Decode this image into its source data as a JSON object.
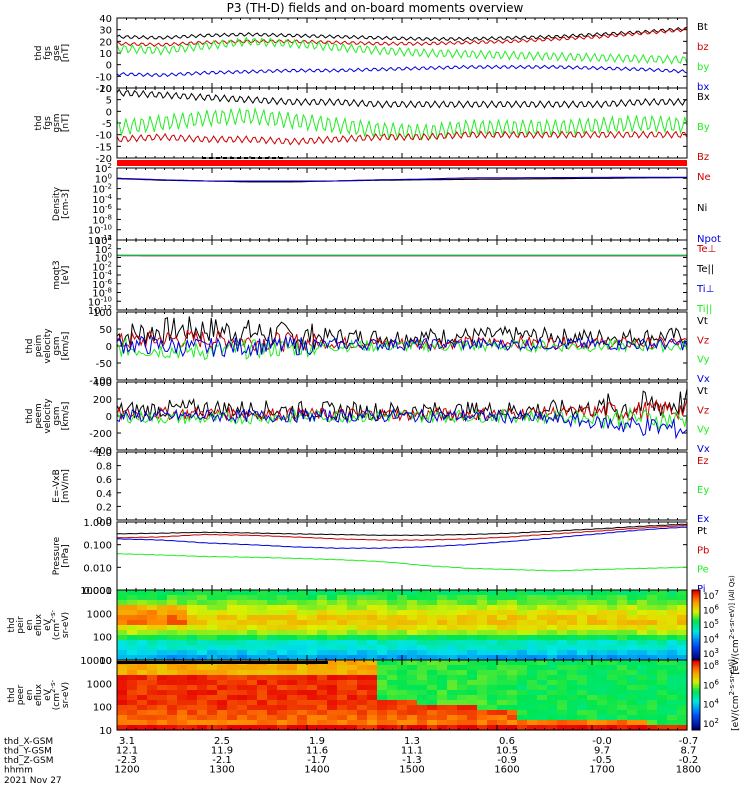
{
  "title": "P3 (TH-D) fields and on-board moments overview",
  "colors": {
    "black": "#000000",
    "red": "#cc0000",
    "green": "#22ee22",
    "blue": "#0000dd"
  },
  "chart_data": [
    {
      "type": "line",
      "ylabel": [
        "thd",
        "fgs",
        "gse",
        "[nT]"
      ],
      "ylim": [
        -20,
        40
      ],
      "yticks": [
        "40",
        "30",
        "20",
        "10",
        "0",
        "-10",
        "-20"
      ],
      "series": [
        {
          "name": "Bt",
          "color": "black",
          "values": [
            24,
            23,
            25,
            26,
            25,
            24,
            23,
            22,
            22,
            23,
            24,
            26,
            28,
            31
          ]
        },
        {
          "name": "bz",
          "color": "red",
          "values": [
            18,
            17,
            19,
            20,
            20,
            19,
            18,
            18,
            19,
            20,
            22,
            24,
            27,
            30
          ]
        },
        {
          "name": "by",
          "color": "green",
          "values": [
            14,
            12,
            16,
            20,
            18,
            15,
            12,
            10,
            9,
            8,
            7,
            6,
            5,
            4
          ]
        },
        {
          "name": "bx",
          "color": "blue",
          "values": [
            -8,
            -9,
            -7,
            -6,
            -5,
            -5,
            -4,
            -3,
            -2,
            -2,
            -2,
            -3,
            -4,
            -6
          ]
        }
      ]
    },
    {
      "type": "line",
      "ylabel": [
        "thd",
        "fgs",
        "gsm",
        "[nT]"
      ],
      "ylim": [
        -20,
        10
      ],
      "yticks": [
        "10",
        "5",
        "0",
        "-5",
        "-10",
        "-15",
        "-20"
      ],
      "series": [
        {
          "name": "Bx",
          "color": "black",
          "values": [
            8,
            7,
            6,
            5,
            4,
            4,
            3,
            3,
            3,
            3,
            3,
            3,
            4,
            4
          ]
        },
        {
          "name": "By",
          "color": "green",
          "values": [
            -7,
            -5,
            -3,
            -2,
            -4,
            -6,
            -8,
            -9,
            -7,
            -7,
            -7,
            -6,
            -5,
            -6
          ]
        },
        {
          "name": "Bz",
          "color": "red",
          "values": [
            -12,
            -11,
            -12,
            -12,
            -13,
            -12,
            -11,
            -11,
            -10,
            -10,
            -10,
            -10,
            -10,
            -10
          ]
        }
      ]
    },
    {
      "type": "line",
      "ylabel": [
        "Density",
        "[cm-3]"
      ],
      "log": true,
      "ylim": [
        -12,
        2
      ],
      "yticks": [
        "10^2",
        "10^0",
        "10^-2",
        "10^-4",
        "10^-6",
        "10^-8",
        "10^-10",
        "10^-12"
      ],
      "series": [
        {
          "name": "Ne",
          "color": "red",
          "values": [
            1,
            0.5,
            0.3,
            0.2,
            0.2,
            0.3,
            0.5,
            0.6,
            0.7,
            0.8,
            0.9,
            1,
            1.2,
            1.4
          ]
        },
        {
          "name": "Ni",
          "color": "black",
          "values": [
            0.8,
            0.4,
            0.3,
            0.2,
            0.2,
            0.3,
            0.4,
            0.5,
            0.6,
            0.7,
            0.8,
            1,
            1.2,
            1.4
          ]
        },
        {
          "name": "Npot",
          "color": "blue",
          "values": [
            0.9,
            0.5,
            0.3,
            0.3,
            0.3,
            0.3,
            0.5,
            0.7,
            1.2,
            1.3,
            1.4,
            1.5,
            1.6,
            1.6
          ]
        }
      ]
    },
    {
      "type": "line",
      "ylabel": [
        "moqt3",
        "[eV]"
      ],
      "log": true,
      "ylim": [
        -12,
        4
      ],
      "yticks": [
        "10^4",
        "10^2",
        "10^0",
        "10^-2",
        "10^-4",
        "10^-6",
        "10^-8",
        "10^-10",
        "10^-12"
      ],
      "series": [
        {
          "name": "Te⊥",
          "color": "red",
          "values": [
            2.7,
            2.6,
            2.6,
            2.6,
            2.6,
            2.6,
            2.6,
            2.6,
            2.6,
            2.6,
            2.6,
            2.6,
            2.6,
            2.6
          ]
        },
        {
          "name": "Te||",
          "color": "black",
          "values": [
            2.8,
            2.7,
            2.7,
            2.7,
            2.7,
            2.7,
            2.7,
            2.7,
            2.7,
            2.7,
            2.7,
            2.7,
            2.7,
            2.7
          ]
        },
        {
          "name": "Ti⊥",
          "color": "blue",
          "values": [
            3.4,
            3.4,
            3.4,
            3.4,
            3.4,
            3.4,
            3.4,
            3.4,
            3.4,
            3.4,
            3.4,
            3.4,
            3.4,
            3.4
          ]
        },
        {
          "name": "Ti||",
          "color": "green",
          "values": [
            3.3,
            3.3,
            3.3,
            3.3,
            3.3,
            3.3,
            3.3,
            3.3,
            3.3,
            3.3,
            3.3,
            3.3,
            3.3,
            3.3
          ]
        }
      ]
    },
    {
      "type": "line",
      "ylabel": [
        "thd",
        "peim",
        "velocity",
        "gsm",
        "[km/s]"
      ],
      "ylim": [
        -100,
        100
      ],
      "yticks": [
        "100",
        "50",
        "0",
        "-50",
        "-100"
      ],
      "series": [
        {
          "name": "Vt",
          "color": "black",
          "values": [
            30,
            45,
            50,
            40,
            30,
            28,
            26,
            28,
            30,
            32,
            28,
            26,
            28,
            30
          ]
        },
        {
          "name": "Vz",
          "color": "red",
          "values": [
            10,
            20,
            20,
            15,
            12,
            10,
            8,
            8,
            10,
            12,
            10,
            8,
            8,
            10
          ]
        },
        {
          "name": "Vy",
          "color": "green",
          "values": [
            -5,
            -10,
            -15,
            -10,
            -5,
            0,
            0,
            0,
            0,
            0,
            0,
            0,
            0,
            0
          ]
        },
        {
          "name": "Vx",
          "color": "blue",
          "values": [
            5,
            0,
            -5,
            0,
            0,
            5,
            5,
            5,
            5,
            5,
            5,
            5,
            5,
            5
          ]
        }
      ]
    },
    {
      "type": "line",
      "ylabel": [
        "thd",
        "peem",
        "velocity",
        "gsm",
        "[km/s]"
      ],
      "ylim": [
        -400,
        400
      ],
      "yticks": [
        "400",
        "200",
        "0",
        "-200",
        "-400"
      ],
      "series": [
        {
          "name": "Vt",
          "color": "black",
          "values": [
            60,
            80,
            90,
            80,
            70,
            60,
            60,
            60,
            60,
            70,
            80,
            90,
            120,
            160
          ]
        },
        {
          "name": "Vz",
          "color": "red",
          "values": [
            20,
            30,
            30,
            30,
            20,
            20,
            20,
            20,
            20,
            30,
            40,
            50,
            60,
            80
          ]
        },
        {
          "name": "Vy",
          "color": "green",
          "values": [
            0,
            -20,
            -30,
            -20,
            -10,
            0,
            0,
            0,
            0,
            0,
            -10,
            -20,
            -30,
            -40
          ]
        },
        {
          "name": "Vx",
          "color": "blue",
          "values": [
            0,
            0,
            0,
            0,
            0,
            0,
            0,
            0,
            0,
            -10,
            -40,
            -80,
            -120,
            -160
          ]
        }
      ]
    },
    {
      "type": "line",
      "ylabel": [
        "E=-VxB",
        "[mV/m]"
      ],
      "ylim": [
        0,
        1
      ],
      "yticks": [
        "1.0",
        "0.8",
        "0.6",
        "0.4",
        "0.2",
        "0.0"
      ],
      "series": [
        {
          "name": "Ez",
          "color": "red",
          "values": []
        },
        {
          "name": "Ey",
          "color": "green",
          "values": []
        },
        {
          "name": "Ex",
          "color": "blue",
          "values": []
        }
      ]
    },
    {
      "type": "line",
      "ylabel": [
        "Pressure",
        "[nPa]"
      ],
      "log": true,
      "ylim": [
        -3,
        0
      ],
      "yticks": [
        "1.000",
        "0.100",
        "0.010",
        "0.001"
      ],
      "series": [
        {
          "name": "Pt",
          "color": "black",
          "values": [
            0.3,
            0.32,
            0.35,
            0.33,
            0.3,
            0.28,
            0.26,
            0.26,
            0.28,
            0.32,
            0.4,
            0.5,
            0.65,
            0.8
          ]
        },
        {
          "name": "Pb",
          "color": "red",
          "values": [
            0.2,
            0.22,
            0.28,
            0.26,
            0.22,
            0.18,
            0.16,
            0.16,
            0.18,
            0.22,
            0.3,
            0.4,
            0.55,
            0.7
          ]
        },
        {
          "name": "Pe",
          "color": "green",
          "values": [
            0.04,
            0.035,
            0.03,
            0.028,
            0.025,
            0.022,
            0.018,
            0.012,
            0.009,
            0.008,
            0.007,
            0.008,
            0.009,
            0.01
          ]
        },
        {
          "name": "Pi",
          "color": "blue",
          "values": [
            0.18,
            0.16,
            0.12,
            0.1,
            0.08,
            0.07,
            0.07,
            0.08,
            0.1,
            0.14,
            0.2,
            0.3,
            0.45,
            0.6
          ]
        }
      ]
    },
    {
      "type": "heatmap",
      "ylabel": [
        "thd",
        "peir",
        "en",
        "eflux",
        "eV",
        "(cm^2-s-",
        "sr-eV)"
      ],
      "yticks": [
        "10000",
        "1000",
        "100",
        "10"
      ],
      "colorbar_label": "[eV/(cm^2-s-sr-eV)] (All Qs)",
      "colorbar_ticks": [
        "10^7",
        "10^6",
        "10^5",
        "10^4",
        "10^3"
      ]
    },
    {
      "type": "heatmap",
      "ylabel": [
        "thd",
        "peer",
        "en",
        "eflux",
        "eV",
        "(cm^2-s-",
        "sr-eV)"
      ],
      "yticks": [
        "10000",
        "1000",
        "100",
        "10"
      ],
      "colorbar_label": "[eV/(cm^2-s-sr-eV)]",
      "colorbar_ticks": [
        "10^8",
        "10^6",
        "10^4",
        "10^2"
      ]
    }
  ],
  "ephemeris": {
    "rows": [
      {
        "label": "thd_X-GSM",
        "values": [
          "3.1",
          "2.5",
          "1.9",
          "1.3",
          "0.6",
          "-0.0",
          "-0.7"
        ]
      },
      {
        "label": "thd_Y-GSM",
        "values": [
          "12.1",
          "11.9",
          "11.6",
          "11.1",
          "10.5",
          "9.7",
          "8.7"
        ]
      },
      {
        "label": "thd_Z-GSM",
        "values": [
          "-2.3",
          "-2.1",
          "-1.7",
          "-1.3",
          "-0.9",
          "-0.5",
          "-0.2"
        ]
      },
      {
        "label": "hhmm",
        "values": [
          "1200",
          "1300",
          "1400",
          "1500",
          "1600",
          "1700",
          "1800"
        ]
      }
    ],
    "date": "2021 Nov 27"
  }
}
